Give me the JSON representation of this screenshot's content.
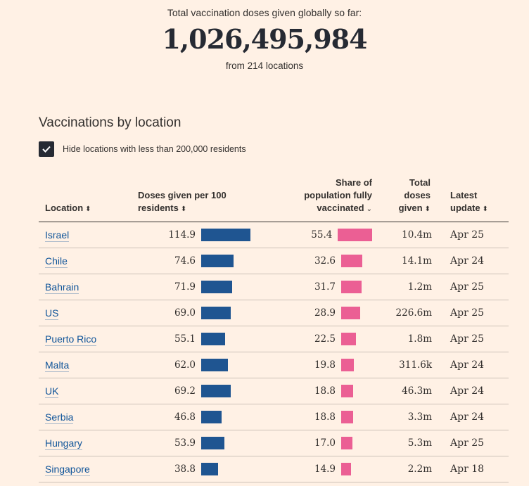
{
  "summary": {
    "label": "Total vaccination doses given globally so far:",
    "total": "1,026,495,984",
    "sub": "from 214 locations"
  },
  "section_title": "Vaccinations by location",
  "filter": {
    "checked": true,
    "label": "Hide locations with less than 200,000 residents"
  },
  "columns": {
    "location": "Location",
    "doses_line1": "Doses given per 100",
    "doses_line2": "residents",
    "share_line1": "Share of",
    "share_line2": "population fully",
    "share_line3": "vaccinated",
    "total_line1": "Total",
    "total_line2": "doses",
    "total_line3": "given",
    "update_line1": "Latest",
    "update_line2": "update"
  },
  "colors": {
    "doses_bar": "#1f5591",
    "share_bar": "#eb5f94",
    "link": "#0f5499"
  },
  "rows": [
    {
      "location": "Israel",
      "doses": "114.9",
      "share": "55.4",
      "total": "10.4m",
      "update": "Apr 25"
    },
    {
      "location": "Chile",
      "doses": "74.6",
      "share": "32.6",
      "total": "14.1m",
      "update": "Apr 24"
    },
    {
      "location": "Bahrain",
      "doses": "71.9",
      "share": "31.7",
      "total": "1.2m",
      "update": "Apr 25"
    },
    {
      "location": "US",
      "doses": "69.0",
      "share": "28.9",
      "total": "226.6m",
      "update": "Apr 25"
    },
    {
      "location": "Puerto Rico",
      "doses": "55.1",
      "share": "22.5",
      "total": "1.8m",
      "update": "Apr 25"
    },
    {
      "location": "Malta",
      "doses": "62.0",
      "share": "19.8",
      "total": "311.6k",
      "update": "Apr 24"
    },
    {
      "location": "UK",
      "doses": "69.2",
      "share": "18.8",
      "total": "46.3m",
      "update": "Apr 24"
    },
    {
      "location": "Serbia",
      "doses": "46.8",
      "share": "18.8",
      "total": "3.3m",
      "update": "Apr 24"
    },
    {
      "location": "Hungary",
      "doses": "53.9",
      "share": "17.0",
      "total": "5.3m",
      "update": "Apr 25"
    },
    {
      "location": "Singapore",
      "doses": "38.8",
      "share": "14.9",
      "total": "2.2m",
      "update": "Apr 18"
    }
  ]
}
